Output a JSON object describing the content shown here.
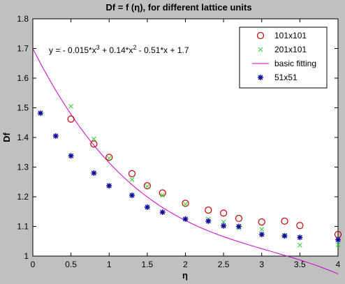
{
  "chart_data": {
    "type": "scatter",
    "title_prefix": "Df = f (",
    "title_symbol": "η",
    "title_suffix": "), for different lattice units",
    "xlabel": "η",
    "ylabel": "Df",
    "xlim": [
      0,
      4
    ],
    "ylim": [
      1,
      1.8
    ],
    "xticks": [
      "0",
      "0.5",
      "1",
      "1.5",
      "2",
      "2.5",
      "3",
      "3.5",
      "4"
    ],
    "yticks": [
      "1",
      "1.1",
      "1.2",
      "1.3",
      "1.4",
      "1.5",
      "1.6",
      "1.7",
      "1.8"
    ],
    "grid": false,
    "legend_position": "top-right",
    "annotation": {
      "part1": "y = - 0.015*x",
      "sup1": "3",
      "part2": " + 0.14*x",
      "sup2": "2",
      "part3": " - 0.51*x + 1.7"
    },
    "series": [
      {
        "name": "101x101",
        "marker": "circle",
        "color": "#cc0000",
        "x": [
          0.5,
          0.8,
          1.0,
          1.3,
          1.5,
          1.7,
          2.0,
          2.3,
          2.5,
          2.7,
          3.0,
          3.3,
          3.5,
          4.0
        ],
        "y": [
          1.462,
          1.378,
          1.333,
          1.278,
          1.237,
          1.213,
          1.178,
          1.155,
          1.145,
          1.127,
          1.115,
          1.118,
          1.103,
          1.073
        ]
      },
      {
        "name": "201x101",
        "marker": "x",
        "color": "#33cc33",
        "x": [
          0.5,
          0.8,
          1.0,
          1.3,
          1.5,
          1.7,
          2.0,
          2.3,
          2.5,
          2.7,
          3.0,
          3.3,
          3.5,
          4.0
        ],
        "y": [
          1.505,
          1.395,
          1.33,
          1.258,
          1.235,
          1.205,
          1.175,
          1.125,
          1.115,
          1.095,
          1.09,
          1.07,
          1.037,
          1.038
        ]
      },
      {
        "name": "basic fitting",
        "marker": "line",
        "color": "#cc00cc",
        "coefficients": [
          -0.015,
          0.14,
          -0.51,
          1.7
        ],
        "xrange": [
          0,
          4
        ]
      },
      {
        "name": "51x51",
        "marker": "star",
        "color": "#000099",
        "x": [
          0.1,
          0.3,
          0.5,
          0.8,
          1.0,
          1.3,
          1.5,
          1.7,
          2.0,
          2.3,
          2.5,
          2.7,
          3.0,
          3.3,
          3.5,
          4.0
        ],
        "y": [
          1.482,
          1.405,
          1.338,
          1.28,
          1.237,
          1.205,
          1.165,
          1.148,
          1.125,
          1.118,
          1.102,
          1.1,
          1.073,
          1.068,
          1.063,
          1.055
        ]
      }
    ]
  }
}
